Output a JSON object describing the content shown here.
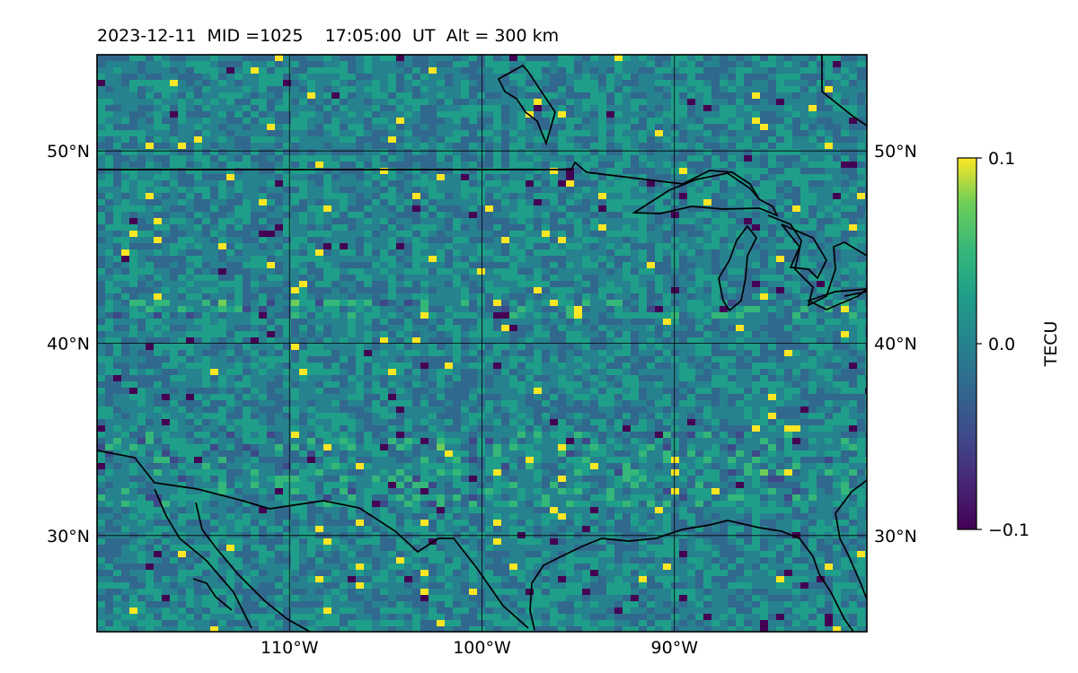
{
  "title": "2023-12-11  MID =1025    17:05:00  UT  Alt = 300 km",
  "map": {
    "lon_range": [
      -120,
      -80
    ],
    "lat_range": [
      25,
      55
    ],
    "lon_ticks": [
      {
        "value": -110,
        "label": "110°W"
      },
      {
        "value": -100,
        "label": "100°W"
      },
      {
        "value": -90,
        "label": "90°W"
      }
    ],
    "lat_ticks": [
      {
        "value": 30,
        "label": "30°N"
      },
      {
        "value": 40,
        "label": "40°N"
      },
      {
        "value": 50,
        "label": "50°N"
      }
    ],
    "gridlines": true,
    "colormap": "viridis",
    "coastline_color": "#000000"
  },
  "colorbar": {
    "label": "TECU",
    "vmin": -0.1,
    "vmax": 0.1,
    "ticks": [
      {
        "value": 0.1,
        "label": "0.1"
      },
      {
        "value": 0.0,
        "label": "0.0"
      },
      {
        "value": -0.1,
        "label": "−0.1"
      }
    ]
  }
}
